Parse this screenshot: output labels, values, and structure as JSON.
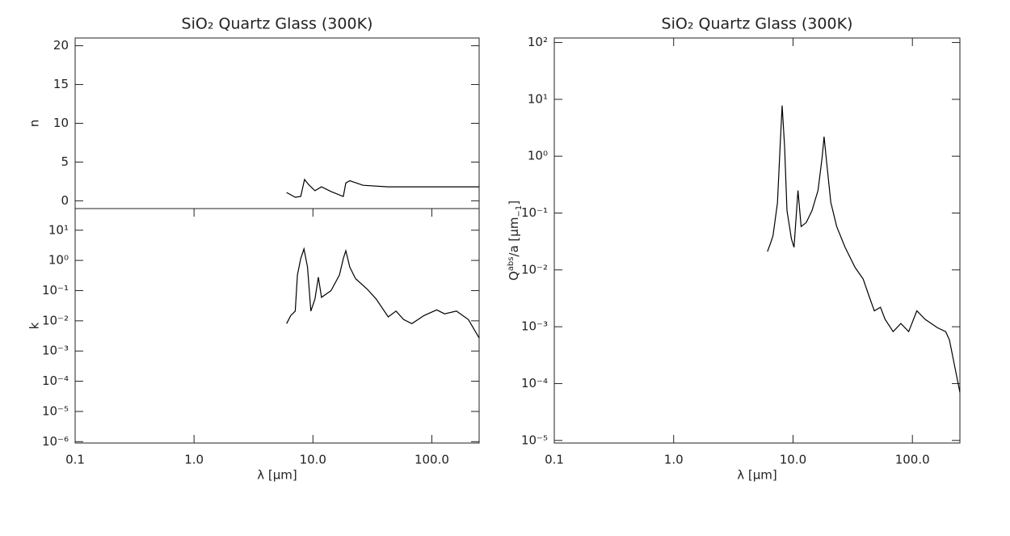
{
  "chart_data": [
    {
      "type": "line",
      "title": "SiO₂ Quartz Glass (300K)",
      "ylabel": "n",
      "xlog": true,
      "ylog": false,
      "xlim": [
        0.1,
        250
      ],
      "ylim": [
        -1,
        21
      ],
      "yticks": [
        0,
        5,
        10,
        15,
        20
      ],
      "x": [
        6.0,
        7.1,
        7.9,
        8.5,
        9.2,
        10.4,
        11.8,
        14.2,
        18,
        18.9,
        20.4,
        26.4,
        43,
        250
      ],
      "series": [
        {
          "color": "#000000",
          "values": [
            1.08,
            0.46,
            0.56,
            2.75,
            2.1,
            1.3,
            1.8,
            1.2,
            0.56,
            2.3,
            2.6,
            2.0,
            1.8,
            1.8
          ]
        }
      ]
    },
    {
      "type": "line",
      "ylabel": "k",
      "xlabel": "λ [μm]",
      "xlog": true,
      "ylog": true,
      "xlim": [
        0.1,
        250
      ],
      "ylim": [
        9e-07,
        52
      ],
      "xticks": [
        0.1,
        {
          "value": 1,
          "label": "1.0"
        },
        {
          "value": 10,
          "label": "10.0"
        },
        {
          "value": 100,
          "label": "100.0"
        }
      ],
      "yticks": [
        {
          "value": 1e-06,
          "label": "10⁻⁶"
        },
        {
          "value": 1e-05,
          "label": "10⁻⁵"
        },
        {
          "value": 0.0001,
          "label": "10⁻⁴"
        },
        {
          "value": 0.001,
          "label": "10⁻³"
        },
        {
          "value": 0.01,
          "label": "10⁻²"
        },
        {
          "value": 0.1,
          "label": "10⁻¹"
        },
        {
          "value": 1,
          "label": "10⁰"
        },
        {
          "value": 10,
          "label": "10¹"
        }
      ],
      "x": [
        6.0,
        6.5,
        7.1,
        7.4,
        7.9,
        8.4,
        9.0,
        9.6,
        10.4,
        11.1,
        11.8,
        14.2,
        16.7,
        18,
        18.9,
        20.4,
        22.8,
        28.7,
        34,
        43,
        50,
        58,
        68,
        86,
        110,
        128,
        161,
        203,
        250
      ],
      "series": [
        {
          "color": "#000000",
          "values": [
            0.0081,
            0.015,
            0.021,
            0.33,
            1.15,
            2.4,
            0.6,
            0.021,
            0.053,
            0.28,
            0.06,
            0.1,
            0.33,
            1.15,
            2.1,
            0.6,
            0.25,
            0.11,
            0.053,
            0.0135,
            0.021,
            0.011,
            0.0081,
            0.015,
            0.023,
            0.017,
            0.021,
            0.011,
            0.0027
          ]
        }
      ]
    },
    {
      "type": "line",
      "title": "SiO₂ Quartz Glass (300K)",
      "ylabel": [
        "Q",
        "abs",
        "/a [μm",
        "−1",
        "]"
      ],
      "xlabel": "λ [μm]",
      "xlog": true,
      "ylog": true,
      "xlim": [
        0.1,
        250
      ],
      "ylim": [
        9e-06,
        120
      ],
      "xticks": [
        0.1,
        {
          "value": 1,
          "label": "1.0"
        },
        {
          "value": 10,
          "label": "10.0"
        },
        {
          "value": 100,
          "label": "100.0"
        }
      ],
      "yticks": [
        {
          "value": 1e-05,
          "label": "10⁻⁵"
        },
        {
          "value": 0.0001,
          "label": "10⁻⁴"
        },
        {
          "value": 0.001,
          "label": "10⁻³"
        },
        {
          "value": 0.01,
          "label": "10⁻²"
        },
        {
          "value": 0.1,
          "label": "10⁻¹"
        },
        {
          "value": 1,
          "label": "10⁰"
        },
        {
          "value": 10,
          "label": "10¹"
        },
        {
          "value": 100,
          "label": "10²"
        }
      ],
      "x": [
        6.1,
        6.5,
        6.8,
        7.4,
        7.8,
        8.1,
        8.5,
        8.9,
        9.7,
        10.2,
        11.0,
        11.7,
        12.9,
        14.4,
        16.2,
        17.5,
        18.2,
        19.1,
        20.7,
        23.2,
        27.3,
        33.1,
        38.7,
        43,
        48,
        54,
        59,
        69,
        80,
        93,
        109,
        128,
        162,
        190,
        204,
        250
      ],
      "series": [
        {
          "color": "#000000",
          "values": [
            0.021,
            0.03,
            0.04,
            0.15,
            1.5,
            7.8,
            1.5,
            0.11,
            0.035,
            0.025,
            0.25,
            0.058,
            0.068,
            0.11,
            0.25,
            0.93,
            2.2,
            0.8,
            0.155,
            0.058,
            0.025,
            0.011,
            0.0069,
            0.0036,
            0.0019,
            0.0022,
            0.00135,
            0.00082,
            0.00114,
            0.00082,
            0.0019,
            0.00135,
            0.00096,
            0.00082,
            0.00059,
            7e-05
          ]
        }
      ]
    }
  ]
}
